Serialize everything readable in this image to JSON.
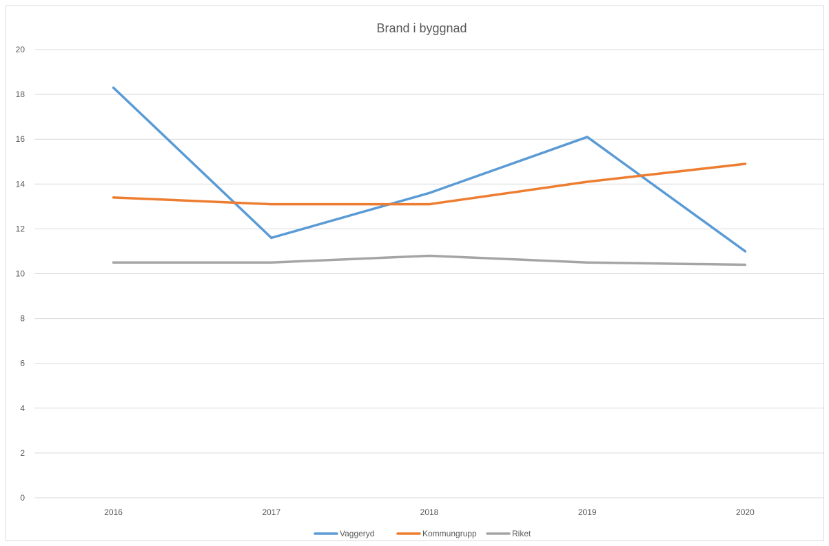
{
  "chart_data": {
    "type": "line",
    "title": "Brand i byggnad",
    "xlabel": "",
    "ylabel": "",
    "categories": [
      "2016",
      "2017",
      "2018",
      "2019",
      "2020"
    ],
    "ylim": [
      0,
      20
    ],
    "yticks": [
      0,
      2,
      4,
      6,
      8,
      10,
      12,
      14,
      16,
      18,
      20
    ],
    "grid": true,
    "legend_position": "bottom",
    "series": [
      {
        "name": "Vaggeryd",
        "color": "#5b9bd5",
        "values": [
          18.3,
          11.6,
          13.6,
          16.1,
          11.0
        ]
      },
      {
        "name": "Kommungrupp",
        "color": "#ed7d31",
        "values": [
          13.4,
          13.1,
          13.1,
          14.1,
          14.9
        ]
      },
      {
        "name": "Riket",
        "color": "#a5a5a5",
        "values": [
          10.5,
          10.5,
          10.8,
          10.5,
          10.4
        ]
      }
    ]
  }
}
